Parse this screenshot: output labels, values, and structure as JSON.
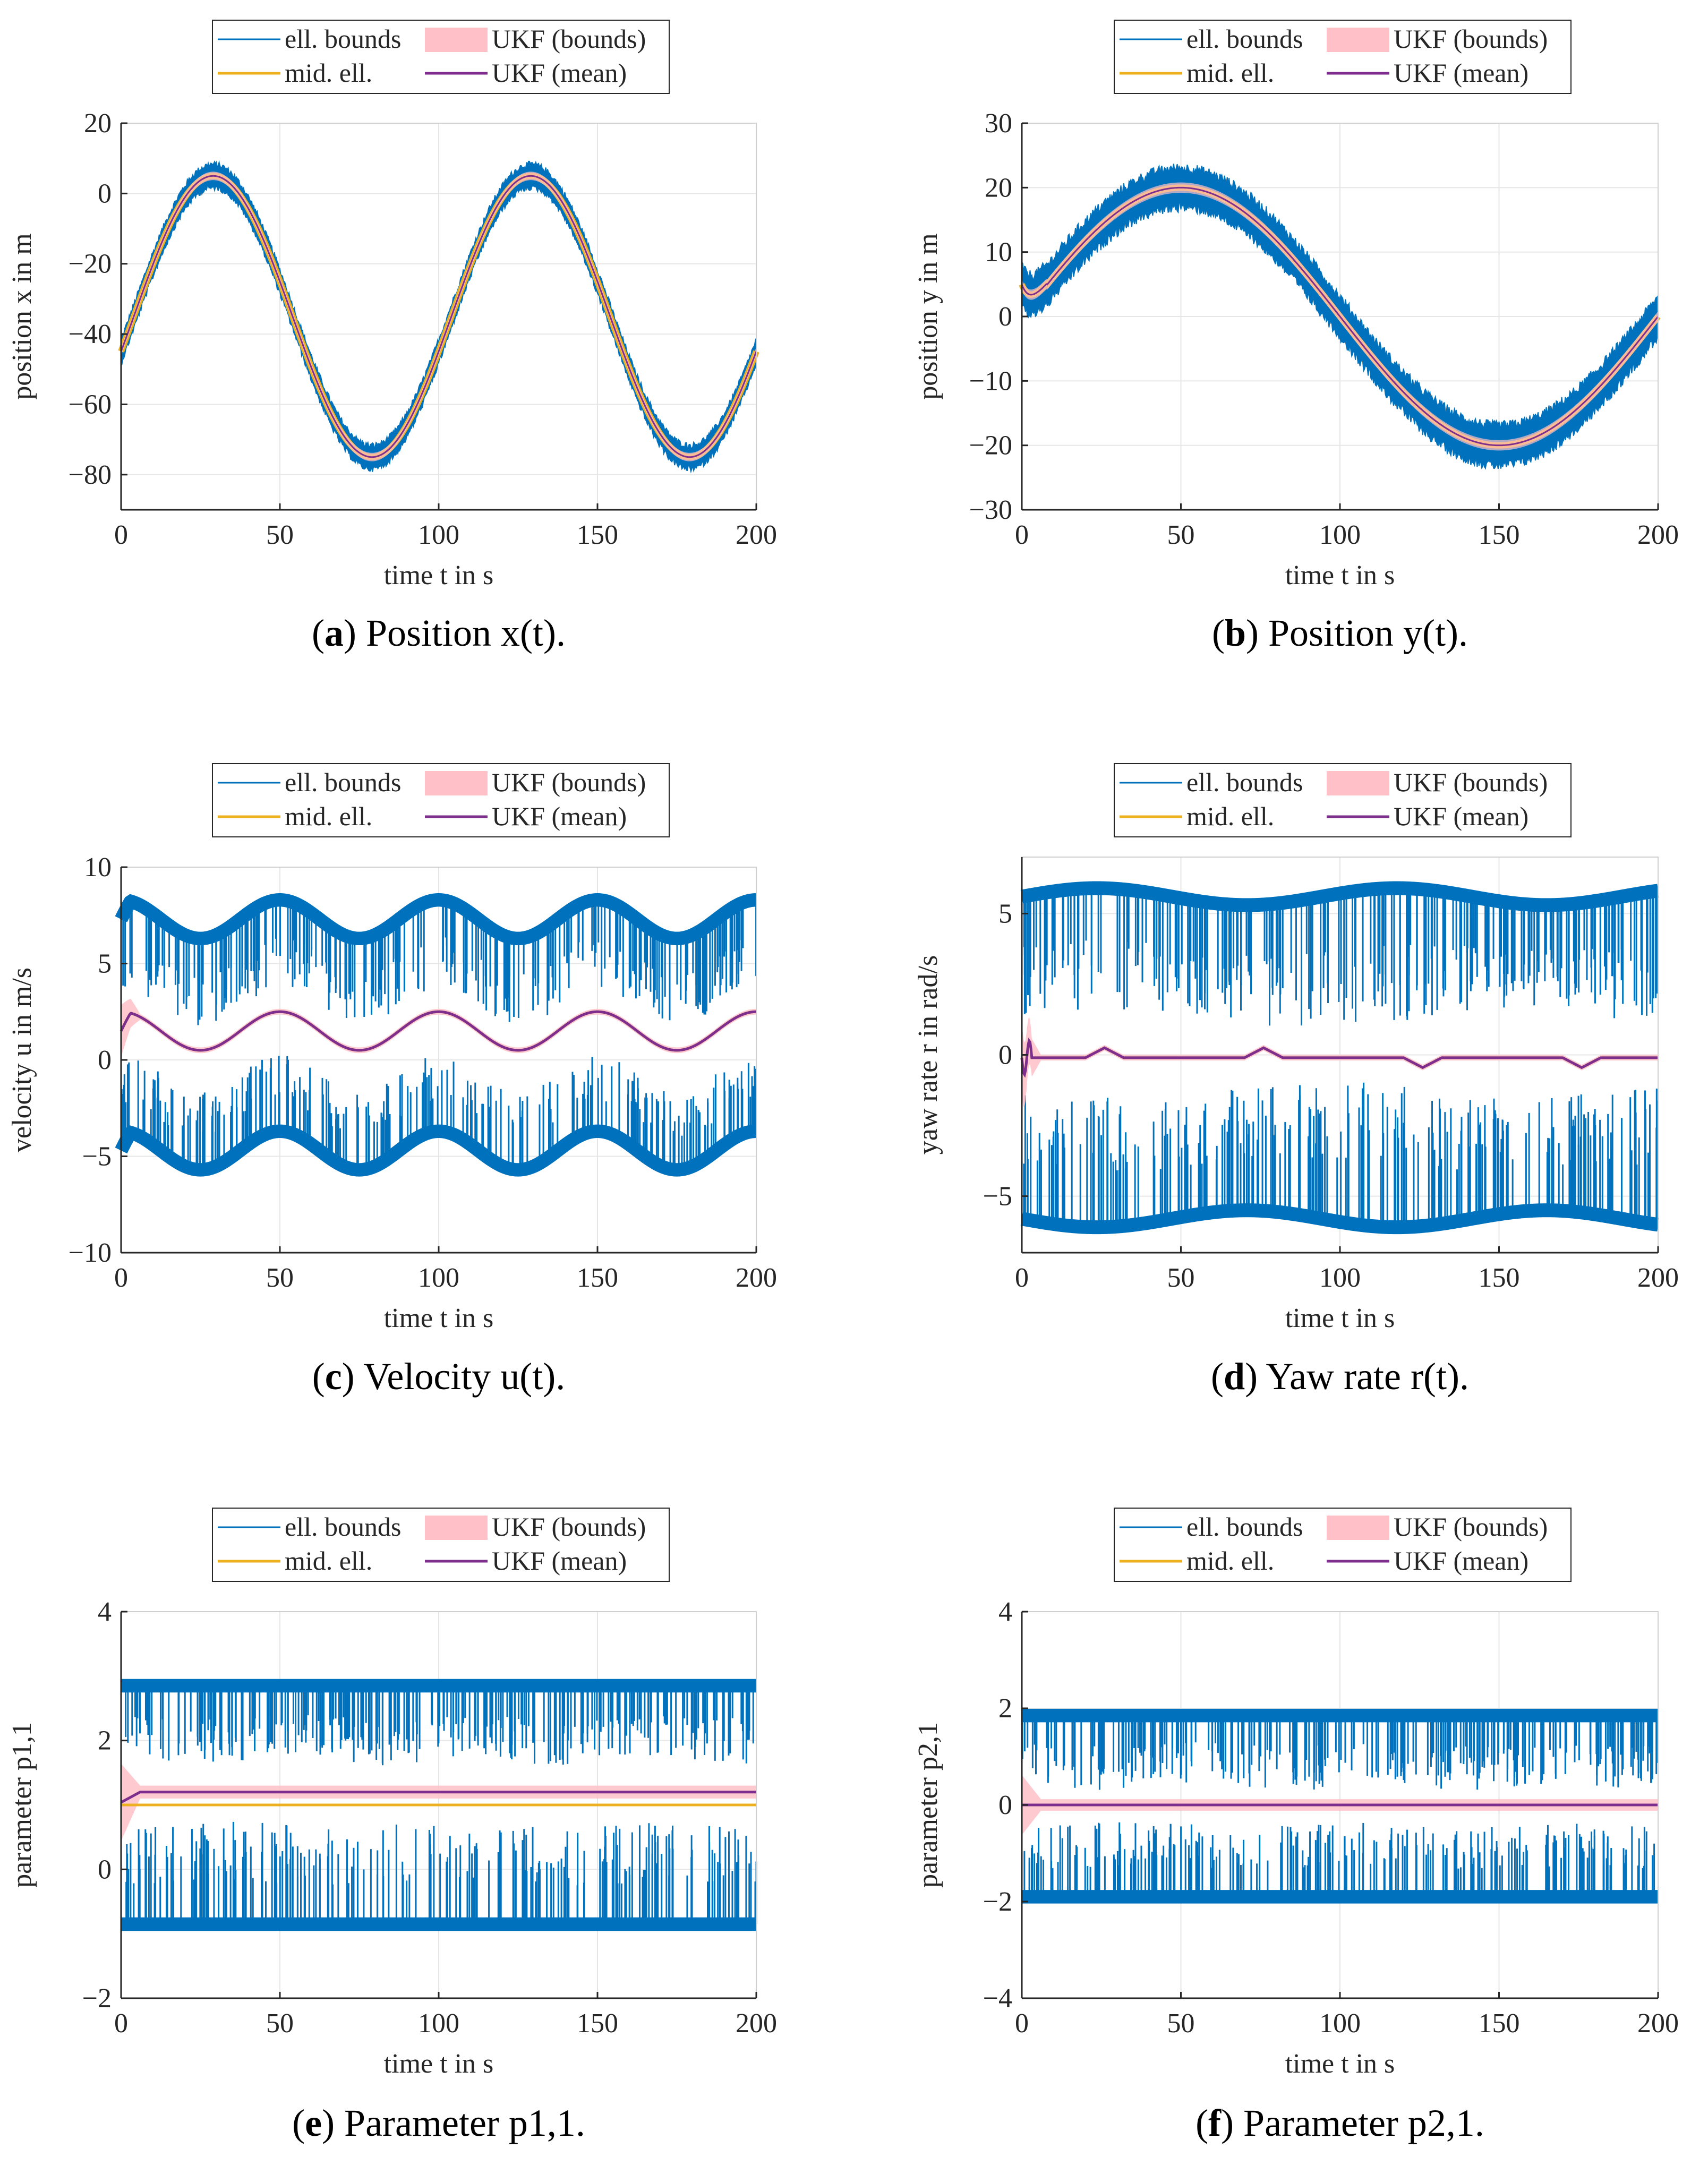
{
  "legend": {
    "ell_bounds": "ell. bounds",
    "ukf_bounds": "UKF (bounds)",
    "mid_ell": "mid. ell.",
    "ukf_mean": "UKF (mean)"
  },
  "colors": {
    "ell_bounds": "#0072BD",
    "mid_ell": "#EDB120",
    "ukf_bounds": "#FFC0C8",
    "ukf_mean": "#7E2F8E",
    "grid": "#e6e6e6",
    "axis": "#262626"
  },
  "chart_data": [
    {
      "id": "a",
      "type": "line",
      "xlabel": "time t in s",
      "ylabel": "position x in m",
      "xlim": [
        0,
        200
      ],
      "ylim": [
        -90,
        20
      ],
      "xticks": [
        0,
        50,
        100,
        150,
        200
      ],
      "yticks": [
        -80,
        -60,
        -40,
        -20,
        0,
        20
      ],
      "xtick_labels": [
        "0",
        "50",
        "100",
        "150",
        "200"
      ],
      "ytick_labels": [
        "−80",
        "−60",
        "−40",
        "−20",
        "0",
        "20"
      ],
      "caption_letter": "a",
      "caption_text": "Position x(t).",
      "signal": {
        "kind": "sine",
        "offset": -35,
        "amplitude": 40,
        "period": 100,
        "peak_t": 29,
        "band": 3.5
      },
      "ukf_halfwidth": 1.2,
      "grid": true
    },
    {
      "id": "b",
      "type": "line",
      "xlabel": "time t in s",
      "ylabel": "position y in m",
      "xlim": [
        0,
        200
      ],
      "ylim": [
        -30,
        30
      ],
      "xticks": [
        0,
        50,
        100,
        150,
        200
      ],
      "yticks": [
        -30,
        -20,
        -10,
        0,
        10,
        20,
        30
      ],
      "xtick_labels": [
        "0",
        "50",
        "100",
        "150",
        "200"
      ],
      "ytick_labels": [
        "−30",
        "−20",
        "−10",
        "0",
        "10",
        "20",
        "30"
      ],
      "caption_letter": "b",
      "caption_text": "Position y(t).",
      "signal": {
        "kind": "sine",
        "offset": 0,
        "amplitude": 20,
        "period": 200,
        "peak_t": 50,
        "band": 3.2,
        "start_value": 5
      },
      "ukf_halfwidth": 0.8,
      "grid": true
    },
    {
      "id": "c",
      "type": "line",
      "xlabel": "time t in s",
      "ylabel": "velocity u in m/s",
      "xlim": [
        0,
        200
      ],
      "ylim": [
        -10,
        10
      ],
      "xticks": [
        0,
        50,
        100,
        150,
        200
      ],
      "yticks": [
        -10,
        -5,
        0,
        5,
        10
      ],
      "xtick_labels": [
        "0",
        "50",
        "100",
        "150",
        "200"
      ],
      "ytick_labels": [
        "−10",
        "−5",
        "0",
        "5",
        "10"
      ],
      "caption_letter": "c",
      "caption_text": "Velocity u(t).",
      "signal": {
        "kind": "velocity",
        "mean": 1.5,
        "amplitude": 1.0,
        "period": 50,
        "upper_offset": 5.8,
        "lower_offset": -6.2,
        "inner_gap": 1.2
      },
      "ukf_halfwidth": 0.15,
      "grid": true
    },
    {
      "id": "d",
      "type": "line",
      "xlabel": "time t in s",
      "ylabel": "yaw rate r in rad/s",
      "xlim": [
        0,
        200
      ],
      "ylim": [
        -7,
        7
      ],
      "xticks": [
        0,
        50,
        100,
        150,
        200
      ],
      "yticks": [
        -5,
        0,
        5
      ],
      "xtick_labels": [
        "0",
        "50",
        "100",
        "150",
        "200"
      ],
      "ytick_labels": [
        "−5",
        "0",
        "5"
      ],
      "caption_letter": "d",
      "caption_text": "Yaw rate r(t).",
      "signal": {
        "kind": "yaw",
        "mean": -0.1,
        "upper": 5.6,
        "lower": -5.8,
        "inner_upper": 1.2,
        "inner_lower": -1.2
      },
      "ukf_halfwidth": 0.1,
      "grid": true
    },
    {
      "id": "e",
      "type": "line",
      "xlabel": "time t in s",
      "ylabel": "parameter p1,1",
      "xlim": [
        0,
        200
      ],
      "ylim": [
        -2,
        4
      ],
      "xticks": [
        0,
        50,
        100,
        150,
        200
      ],
      "yticks": [
        -2,
        0,
        2,
        4
      ],
      "xtick_labels": [
        "0",
        "50",
        "100",
        "150",
        "200"
      ],
      "ytick_labels": [
        "−2",
        "0",
        "2",
        "4"
      ],
      "caption_letter": "e",
      "caption_text": "Parameter p1,1.",
      "signal": {
        "kind": "param",
        "mid": 1.0,
        "ukf_mean": 1.2,
        "upper": 2.85,
        "lower": -0.85,
        "inner_upper": 1.8,
        "inner_lower": 0.6
      },
      "ukf_halfwidth": 0.1,
      "grid": true
    },
    {
      "id": "f",
      "type": "line",
      "xlabel": "time t in s",
      "ylabel": "parameter p2,1",
      "xlim": [
        0,
        200
      ],
      "ylim": [
        -4,
        4
      ],
      "xticks": [
        0,
        50,
        100,
        150,
        200
      ],
      "yticks": [
        -4,
        -2,
        0,
        2,
        4
      ],
      "xtick_labels": [
        "0",
        "50",
        "100",
        "150",
        "200"
      ],
      "ytick_labels": [
        "−4",
        "−2",
        "0",
        "2",
        "4"
      ],
      "caption_letter": "f",
      "caption_text": "Parameter p2,1.",
      "signal": {
        "kind": "param",
        "mid": 0.0,
        "ukf_mean": 0.0,
        "upper": 1.85,
        "lower": -1.9,
        "inner_upper": 0.5,
        "inner_lower": -0.5
      },
      "ukf_halfwidth": 0.12,
      "grid": true
    }
  ]
}
